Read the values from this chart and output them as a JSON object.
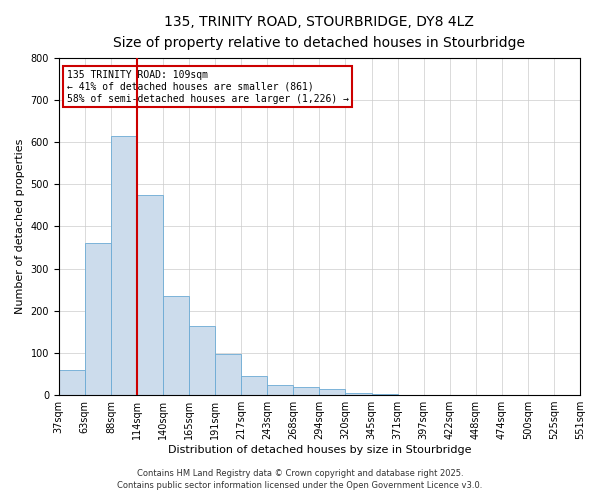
{
  "title": "135, TRINITY ROAD, STOURBRIDGE, DY8 4LZ",
  "subtitle": "Size of property relative to detached houses in Stourbridge",
  "xlabel": "Distribution of detached houses by size in Stourbridge",
  "ylabel": "Number of detached properties",
  "bar_values": [
    60,
    360,
    615,
    475,
    235,
    165,
    98,
    45,
    25,
    20,
    15,
    5,
    2,
    1,
    0,
    0,
    0,
    0,
    0,
    0
  ],
  "x_labels": [
    "37sqm",
    "63sqm",
    "88sqm",
    "114sqm",
    "140sqm",
    "165sqm",
    "191sqm",
    "217sqm",
    "243sqm",
    "268sqm",
    "294sqm",
    "320sqm",
    "345sqm",
    "371sqm",
    "397sqm",
    "422sqm",
    "448sqm",
    "474sqm",
    "500sqm",
    "525sqm",
    "551sqm"
  ],
  "bar_color": "#ccdcec",
  "bar_edge_color": "#6aaad4",
  "ylim": [
    0,
    800
  ],
  "yticks": [
    0,
    100,
    200,
    300,
    400,
    500,
    600,
    700,
    800
  ],
  "red_line_color": "#cc0000",
  "annotation_text": "135 TRINITY ROAD: 109sqm\n← 41% of detached houses are smaller (861)\n58% of semi-detached houses are larger (1,226) →",
  "annotation_box_color": "#ffffff",
  "annotation_box_edge": "#cc0000",
  "footer_line1": "Contains HM Land Registry data © Crown copyright and database right 2025.",
  "footer_line2": "Contains public sector information licensed under the Open Government Licence v3.0.",
  "background_color": "#ffffff",
  "plot_background": "#ffffff",
  "grid_color": "#cccccc",
  "title_fontsize": 10,
  "subtitle_fontsize": 9,
  "label_fontsize": 8,
  "tick_fontsize": 7,
  "footer_fontsize": 6
}
